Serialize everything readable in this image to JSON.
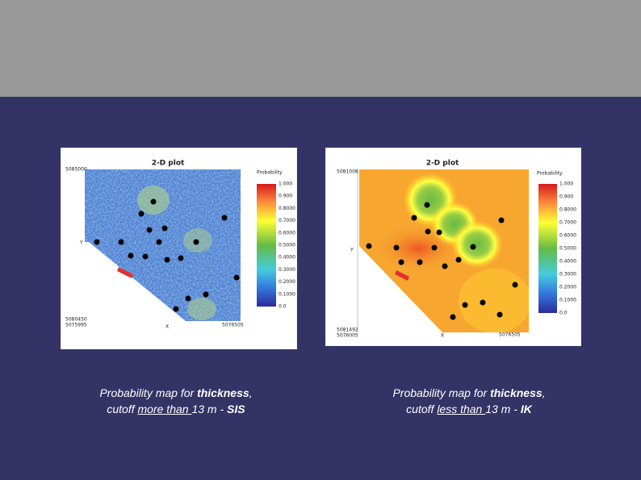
{
  "slide": {
    "panels": [
      {
        "title": "2-D plot",
        "legend_title": "Probability",
        "legend_ticks": [
          "1.000",
          "0.900",
          "0.8000",
          "0.7000",
          "0.6000",
          "0.5000",
          "0.4000",
          "0.3000",
          "0.2000",
          "0.1000",
          "0.0"
        ],
        "x_label": "X",
        "y_label": "Y",
        "y_max_label": "5085000",
        "y_min_label": "5080450",
        "x_min_label": "5075995",
        "x_max_label": "5076505",
        "caption": {
          "line1": [
            "Probability map for ",
            "thickness",
            ","
          ],
          "line2": [
            "cutoff ",
            "more than ",
            "13 m - ",
            "SIS"
          ]
        }
      },
      {
        "title": "2-D plot",
        "legend_title": "Probability",
        "legend_ticks": [
          "1.000",
          "0.900",
          "0.8000",
          "0.7000",
          "0.6000",
          "0.5000",
          "0.4000",
          "0.3000",
          "0.2000",
          "0.1000",
          "0.0"
        ],
        "x_label": "X",
        "y_label": "Y",
        "y_max_label": "5081008",
        "y_min_label": "5081492",
        "x_min_label": "5076005",
        "x_max_label": "5076505",
        "caption": {
          "line1": [
            "Probability map for ",
            "thickness",
            ","
          ],
          "line2": [
            "cutoff ",
            "less than ",
            "13 m - ",
            "IK"
          ]
        }
      }
    ]
  }
}
